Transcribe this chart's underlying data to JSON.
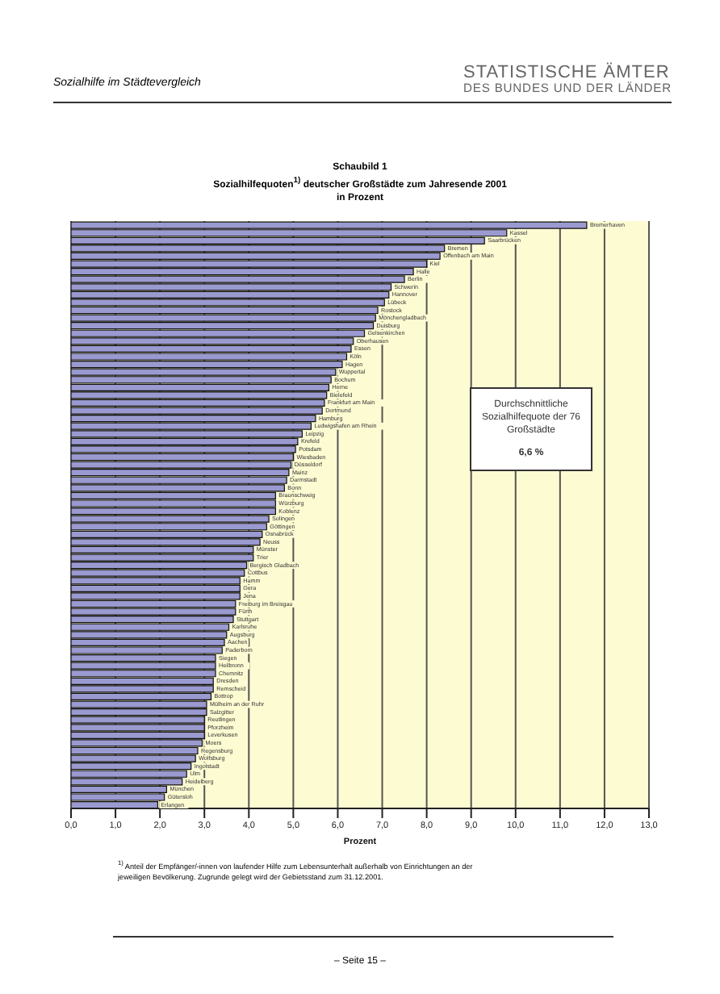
{
  "chart_data": {
    "type": "bar",
    "orientation": "horizontal",
    "title": "Schaubild 1",
    "subtitle": "Sozialhilfequoten$^{1)}$ deutscher Großstädte zum Jahresende 2001\nin Prozent",
    "xlabel": "Prozent",
    "categories": [
      "Bremerhaven",
      "Kassel",
      "Saarbrücken",
      "Bremen",
      "Offenbach am Main",
      "Kiel",
      "Halle",
      "Berlin",
      "Schwerin",
      "Hannover",
      "Lübeck",
      "Rostock",
      "Mönchengladbach",
      "Duisburg",
      "Gelsenkirchen",
      "Oberhausen",
      "Essen",
      "Köln",
      "Hagen",
      "Wuppertal",
      "Bochum",
      "Herne",
      "Bielefeld",
      "Frankfurt am Main",
      "Dortmund",
      "Hamburg",
      "Ludwigshafen am Rhein",
      "Leipzig",
      "Krefeld",
      "Potsdam",
      "Wiesbaden",
      "Düsseldorf",
      "Mainz",
      "Darmstadt",
      "Bonn",
      "Braunschweig",
      "Würzburg",
      "Koblenz",
      "Solingen",
      "Göttingen",
      "Osnabrück",
      "Neuss",
      "Münster",
      "Trier",
      "Bergisch Gladbach",
      "Cottbus",
      "Hamm",
      "Gera",
      "Jena",
      "Freiburg im Breisgau",
      "Fürth",
      "Stuttgart",
      "Karlsruhe",
      "Augsburg",
      "Aachen",
      "Paderborn",
      "Siegen",
      "Heilbronn",
      "Chemnitz",
      "Dresden",
      "Remscheid",
      "Bottrop",
      "Mülheim an der Ruhr",
      "Salzgitter",
      "Reutlingen",
      "Pforzheim",
      "Leverkusen",
      "Moers",
      "Regensburg",
      "Wolfsburg",
      "Ingolstadt",
      "Ulm",
      "Heidelberg",
      "München",
      "Gütersloh",
      "Erlangen"
    ],
    "values": [
      11.6,
      9.8,
      9.3,
      8.4,
      8.3,
      8.0,
      7.7,
      7.5,
      7.2,
      7.15,
      7.05,
      6.9,
      6.85,
      6.8,
      6.6,
      6.35,
      6.3,
      6.2,
      6.1,
      5.95,
      5.85,
      5.8,
      5.75,
      5.7,
      5.65,
      5.5,
      5.4,
      5.2,
      5.1,
      5.05,
      5.0,
      4.95,
      4.9,
      4.85,
      4.8,
      4.6,
      4.6,
      4.6,
      4.45,
      4.4,
      4.3,
      4.25,
      4.1,
      4.1,
      3.95,
      3.9,
      3.8,
      3.8,
      3.8,
      3.7,
      3.7,
      3.65,
      3.55,
      3.5,
      3.45,
      3.4,
      3.25,
      3.25,
      3.25,
      3.2,
      3.2,
      3.15,
      3.05,
      3.05,
      3.0,
      3.0,
      3.0,
      2.95,
      2.85,
      2.8,
      2.7,
      2.6,
      2.5,
      2.15,
      2.1,
      1.95
    ],
    "color": "#9a9ad0",
    "xlim": [
      0,
      13
    ],
    "xticks": [
      {
        "value": 0,
        "label": "0,0"
      },
      {
        "value": 1,
        "label": "1,0"
      },
      {
        "value": 2,
        "label": "2,0"
      },
      {
        "value": 3,
        "label": "3,0"
      },
      {
        "value": 4,
        "label": "4,0"
      },
      {
        "value": 5,
        "label": "5,0"
      },
      {
        "value": 6,
        "label": "6,0"
      },
      {
        "value": 7,
        "label": "7,0"
      },
      {
        "value": 8,
        "label": "8,0"
      },
      {
        "value": 9,
        "label": "9,0"
      },
      {
        "value": 10,
        "label": "10,0"
      },
      {
        "value": 11,
        "label": "11,0"
      },
      {
        "value": 12,
        "label": "12,0"
      },
      {
        "value": 13,
        "label": "13,0"
      }
    ],
    "grid": "x",
    "annotations": [
      "Sozialhilfe im Städtevergleich",
      "STATISTISCHE ÄMTER",
      "DES BUNDES UND DER LÄNDER",
      "Durchschnittliche Sozialhilfequote der 76 Großstädte",
      "6,6 %",
      "$^{1)}$ Anteil der Empfänger/-innen von laufender Hilfe zum Lebensunterhalt außerhalb von Einrichtungen an der jeweiligen Bevölkerung. Zugrunde gelegt wird der Gebietsstand zum 31.12.2001.",
      "– Seite 15 –"
    ]
  }
}
